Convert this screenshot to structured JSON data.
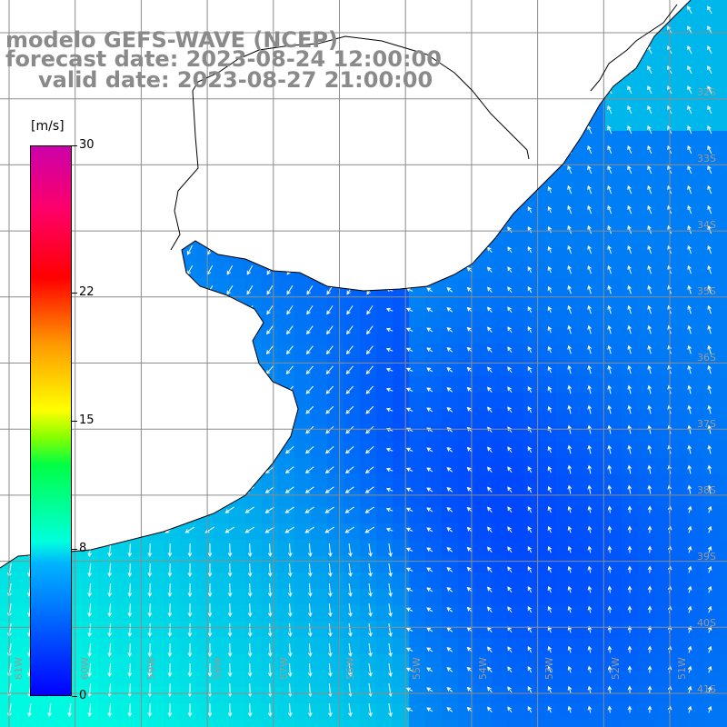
{
  "title": {
    "model": "modelo GEFS-WAVE (NCEP)",
    "forecast": "forecast date: 2023-08-24 12:00:00",
    "valid": "valid date: 2023-08-27 21:00:00"
  },
  "colorbar": {
    "units": "[m/s]",
    "ticks": [
      {
        "label": "30",
        "value": 30
      },
      {
        "label": "22",
        "value": 22
      },
      {
        "label": "15",
        "value": 15
      },
      {
        "label": "8",
        "value": 8
      },
      {
        "label": "0",
        "value": 0
      }
    ],
    "min": 0,
    "max": 30
  },
  "map": {
    "lat_labels": [
      "32S",
      "33S",
      "34S",
      "35S",
      "36S",
      "37S",
      "38S",
      "39S",
      "40S",
      "41S"
    ],
    "lon_labels": [
      "61W",
      "60W",
      "59W",
      "58W",
      "57W",
      "56W",
      "55W",
      "54W",
      "53W",
      "52W",
      "51W"
    ],
    "field": "wind speed and direction",
    "colors": {
      "land": "#ffffff",
      "coast": "#000000",
      "grid": "#8c8c8c",
      "arrow": "#ffffff"
    }
  }
}
